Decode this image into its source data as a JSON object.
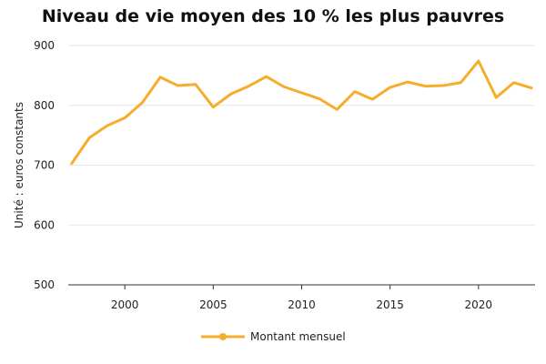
{
  "chart_data": {
    "type": "line",
    "title": "Niveau de vie moyen des 10 % les plus pauvres",
    "xlabel": "",
    "ylabel": "Unité : euros constants",
    "ylim": [
      500,
      900
    ],
    "xlim": [
      1996.8,
      2023.2
    ],
    "yticks": [
      500,
      600,
      700,
      800,
      900
    ],
    "xticks": [
      2000,
      2005,
      2010,
      2015,
      2020
    ],
    "grid": "horizontal",
    "legend_position": "bottom",
    "colors": {
      "series": "#f5ad2b",
      "grid": "#e6e6e6",
      "axis": "#333333"
    },
    "x": [
      1997,
      1998,
      1999,
      2000,
      2001,
      2002,
      2003,
      2004,
      2005,
      2006,
      2007,
      2008,
      2009,
      2010,
      2011,
      2012,
      2013,
      2014,
      2015,
      2016,
      2017,
      2018,
      2019,
      2020,
      2021,
      2022,
      2023
    ],
    "series": [
      {
        "name": "Montant mensuel",
        "values": [
          703,
          746,
          766,
          779,
          805,
          847,
          833,
          835,
          797,
          819,
          832,
          848,
          831,
          821,
          811,
          793,
          823,
          810,
          830,
          839,
          832,
          833,
          838,
          874,
          813,
          838,
          829
        ]
      }
    ]
  }
}
